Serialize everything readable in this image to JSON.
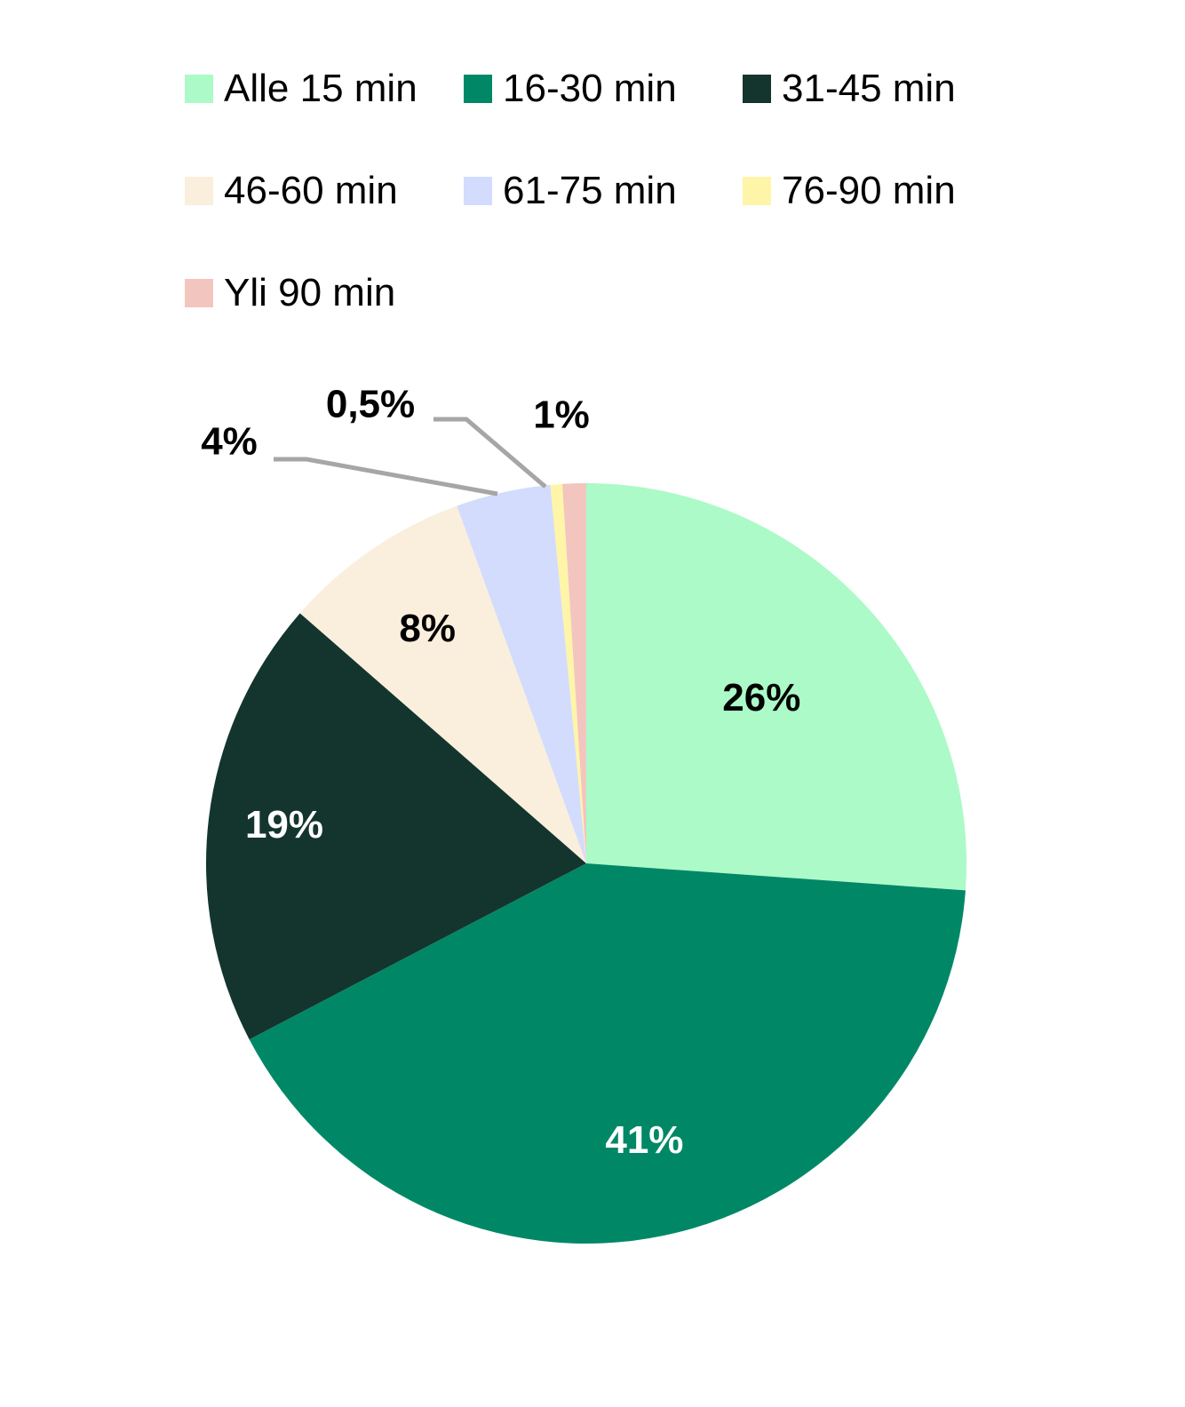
{
  "chart_data": {
    "type": "pie",
    "legend_position": "top",
    "categories": [
      "Alle 15 min",
      "16-30 min",
      "31-45 min",
      "46-60 min",
      "61-75 min",
      "76-90 min",
      "Yli 90 min"
    ],
    "values": [
      26,
      41,
      19,
      8,
      4,
      0.5,
      1
    ],
    "data_labels": [
      "26%",
      "41%",
      "19%",
      "8%",
      "4%",
      "0,5%",
      "1%"
    ],
    "colors": [
      "#abfac8",
      "#008866",
      "#13352e",
      "#faefdc",
      "#d3dcfd",
      "#fff5a8",
      "#f3c5bf"
    ],
    "label_colors": [
      "#000000",
      "#ffffff",
      "#ffffff",
      "#000000",
      "#000000",
      "#000000",
      "#000000"
    ]
  }
}
